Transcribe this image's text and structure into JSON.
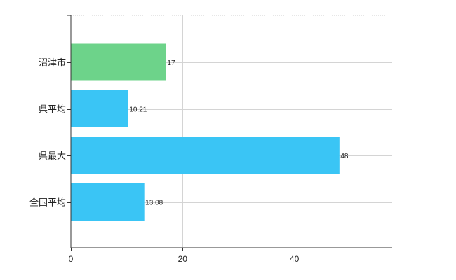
{
  "chart_data": {
    "type": "bar",
    "orientation": "horizontal",
    "categories": [
      "沼津市",
      "県平均",
      "県最大",
      "全国平均"
    ],
    "values": [
      17,
      10.21,
      48,
      13.08
    ],
    "value_labels": [
      "17",
      "10.21",
      "48",
      "13.08"
    ],
    "bar_colors": [
      "#6dd38a",
      "#3ac5f5",
      "#3ac5f5",
      "#3ac5f5"
    ],
    "xlim": [
      0,
      57.5
    ],
    "x_ticks": [
      0,
      20,
      40
    ],
    "x_tick_labels": [
      "0",
      "20",
      "40"
    ],
    "grid": true,
    "legend": "none"
  }
}
